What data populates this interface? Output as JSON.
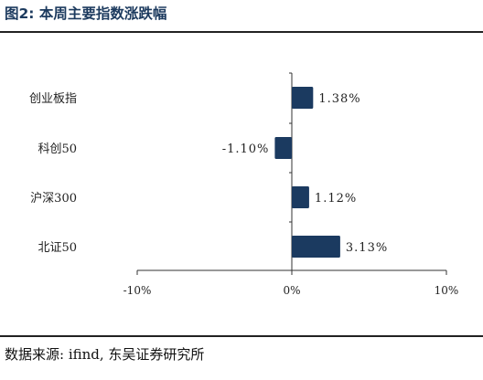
{
  "figure": {
    "title": "图2:  本周主要指数涨跌幅",
    "source": "数据来源:  ifind, 东吴证券研究所"
  },
  "colors": {
    "bar": "#1b3a60",
    "axis": "#333333",
    "title": "#1c3a5e"
  },
  "chart_data": {
    "type": "bar",
    "orientation": "horizontal",
    "title": "",
    "xlabel": "",
    "ylabel": "",
    "categories": [
      "创业板指",
      "科创50",
      "沪深300",
      "北证50"
    ],
    "values": [
      1.38,
      -1.1,
      1.12,
      3.13
    ],
    "data_labels": [
      "1.38%",
      "-1.10%",
      "1.12%",
      "3.13%"
    ],
    "xlim": [
      -10,
      10
    ],
    "x_ticks": [
      -10,
      0,
      10
    ],
    "x_tick_labels": [
      "-10%",
      "0%",
      "10%"
    ],
    "grid": false,
    "legend": "none"
  }
}
